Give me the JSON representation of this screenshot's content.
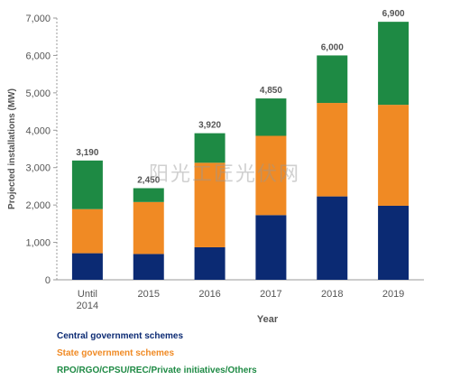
{
  "chart_data": {
    "type": "bar",
    "stacked": true,
    "categories": [
      "Until\n2014",
      "2015",
      "2016",
      "2017",
      "2018",
      "2019"
    ],
    "series": [
      {
        "name": "Central government schemes",
        "color": "#0b2a73",
        "values": [
          710,
          690,
          870,
          1730,
          2230,
          1980
        ]
      },
      {
        "name": "State government schemes",
        "color": "#f08a24",
        "values": [
          1180,
          1390,
          2260,
          2120,
          2500,
          2700
        ]
      },
      {
        "name": "RPO/RGO/CPSU/REC/Private initiatives/Others",
        "color": "#1e8a44",
        "values": [
          1300,
          370,
          790,
          1000,
          1270,
          2220
        ]
      }
    ],
    "totals": [
      "3,190",
      "2,450",
      "3,920",
      "4,850",
      "6,000",
      "6,900"
    ],
    "ylabel": "Projected installations (MW)",
    "xlabel": "Year",
    "ylim": [
      0,
      7000
    ],
    "yticks": [
      "0",
      "1,000",
      "2,000",
      "3,000",
      "4,000",
      "5,000",
      "6,000",
      "7,000"
    ],
    "grid": false,
    "legend": "bottom-left"
  },
  "watermark": "阳光工匠光伏网"
}
